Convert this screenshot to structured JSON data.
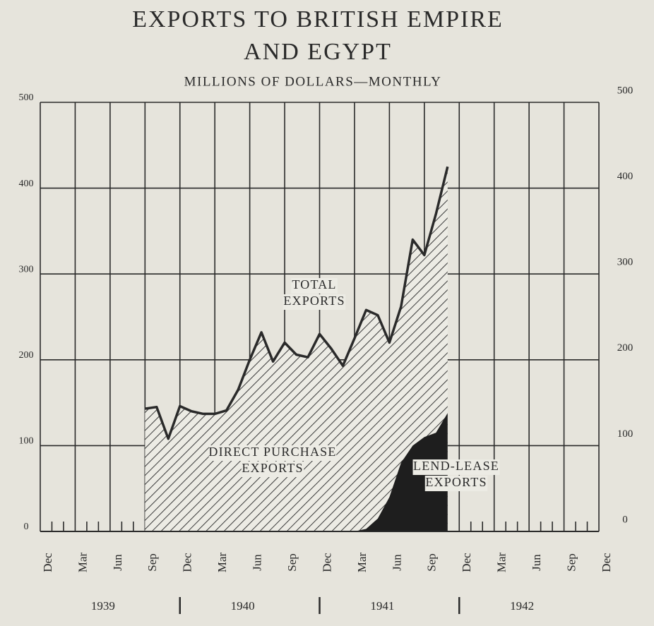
{
  "chart_data": {
    "type": "area",
    "title": [
      "EXPORTS TO BRITISH EMPIRE",
      "AND EGYPT"
    ],
    "subtitle": "MILLIONS OF DOLLARS—MONTHLY",
    "categories": [
      "Dec",
      null,
      null,
      "Mar",
      null,
      null,
      "Jun",
      null,
      null,
      "Sep",
      null,
      null,
      "Dec",
      null,
      null,
      "Mar",
      null,
      null,
      "Jun",
      null,
      null,
      "Sep",
      null,
      null,
      "Dec",
      null,
      null,
      "Mar",
      null,
      null,
      "Jun",
      null,
      null,
      "Sep",
      null,
      null,
      "Dec",
      null,
      null,
      "Mar",
      null,
      null,
      "Jun",
      null,
      null,
      "Sep",
      null,
      null,
      "Dec"
    ],
    "year_labels": [
      "1939",
      "1940",
      "1941",
      "1942"
    ],
    "series": [
      {
        "name": "Total exports",
        "color": "#2a2a2a",
        "values": [
          null,
          null,
          null,
          null,
          null,
          null,
          null,
          null,
          null,
          143,
          145,
          108,
          146,
          140,
          137,
          137,
          141,
          165,
          200,
          232,
          198,
          220,
          206,
          203,
          230,
          213,
          193,
          225,
          258,
          252,
          220,
          262,
          340,
          322,
          370,
          425,
          null,
          null,
          null,
          null,
          null,
          null,
          null,
          null,
          null,
          null,
          null,
          null,
          null
        ]
      },
      {
        "name": "Lend-lease exports",
        "color": "#1e1e1e",
        "values": [
          null,
          null,
          null,
          null,
          null,
          null,
          null,
          null,
          null,
          null,
          null,
          null,
          null,
          null,
          null,
          null,
          null,
          null,
          null,
          null,
          null,
          null,
          null,
          null,
          null,
          null,
          null,
          0,
          3,
          15,
          40,
          80,
          100,
          110,
          115,
          138,
          null,
          null,
          null,
          null,
          null,
          null,
          null,
          null,
          null,
          null,
          null,
          null,
          null
        ]
      }
    ],
    "annotations": [
      {
        "text": [
          "TOTAL",
          "EXPORTS"
        ]
      },
      {
        "text": [
          "DIRECT PURCHASE",
          "EXPORTS"
        ]
      },
      {
        "text": [
          "LEND-LEASE",
          "EXPORTS"
        ]
      }
    ],
    "ylim": [
      0,
      500
    ],
    "yticks": [
      0,
      100,
      200,
      300,
      400,
      500
    ],
    "y2lim": [
      0,
      500
    ],
    "y2ticks": [
      0,
      100,
      200,
      300,
      400,
      500
    ],
    "grid": true
  }
}
